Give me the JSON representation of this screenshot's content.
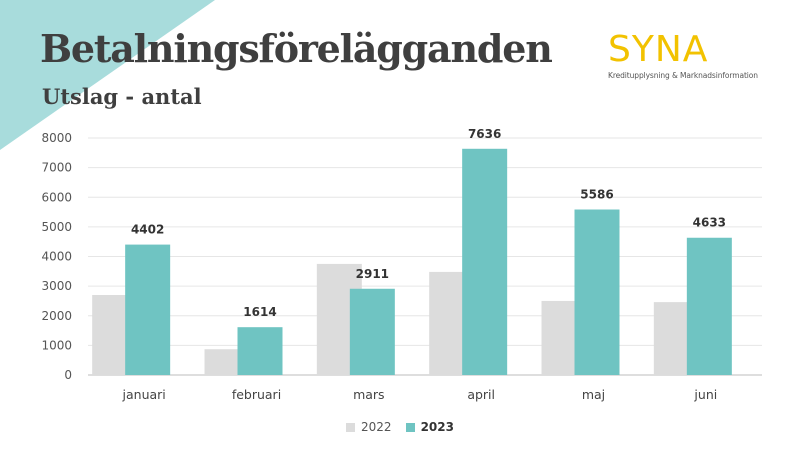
{
  "header": {
    "title": "Betalningsförelägganden",
    "subtitle": "Utslag - antal"
  },
  "logo": {
    "name": "SYNA",
    "tagline": "Kreditupplysning & Marknadsinformation",
    "color": "#f2c200"
  },
  "colors": {
    "series_2022": "#dcdcdc",
    "series_2023": "#6fc4c2",
    "corner_accent": "#a8dcdc"
  },
  "chart_data": {
    "type": "bar",
    "categories": [
      "januari",
      "februari",
      "mars",
      "april",
      "maj",
      "juni"
    ],
    "series": [
      {
        "name": "2022",
        "values": [
          2700,
          870,
          3750,
          3480,
          2500,
          2460
        ]
      },
      {
        "name": "2023",
        "values": [
          4402,
          1614,
          2911,
          7636,
          5586,
          4633
        ],
        "labeled": true
      }
    ],
    "ylim": [
      0,
      8000
    ],
    "yticks": [
      "0",
      "1000",
      "2000",
      "3000",
      "4000",
      "5000",
      "6000",
      "7000",
      "8000"
    ],
    "grid": true,
    "legend": "bottom-center"
  }
}
